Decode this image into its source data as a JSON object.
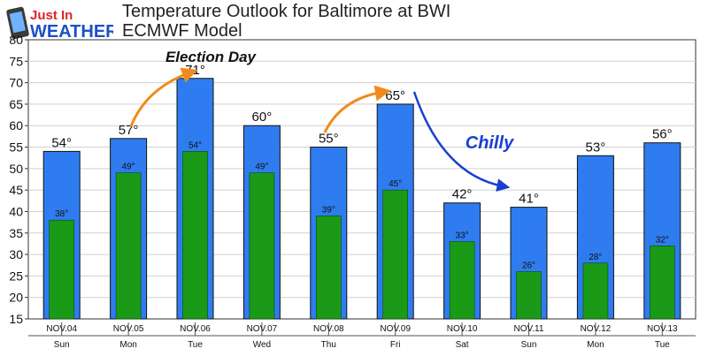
{
  "logo": {
    "line1": "Just In",
    "line2": "WEATHER"
  },
  "header": {
    "title": "Temperature Outlook for Baltimore at BWI",
    "subtitle": "ECMWF Model"
  },
  "chart_data": {
    "type": "bar",
    "categories": [
      "NOV.04",
      "NOV.05",
      "NOV.06",
      "NOV.07",
      "NOV.08",
      "NOV.09",
      "NOV.10",
      "NOV.11",
      "NOV.12",
      "NOV.13"
    ],
    "days": [
      "Sun",
      "Mon",
      "Tue",
      "Wed",
      "Thu",
      "Fri",
      "Sat",
      "Sun",
      "Mon",
      "Tue"
    ],
    "series": [
      {
        "key": "high",
        "values": [
          54,
          57,
          71,
          60,
          55,
          65,
          42,
          41,
          53,
          56
        ],
        "color": "#2f7cf0",
        "label_suffix": "°"
      },
      {
        "key": "low",
        "values": [
          38,
          49,
          54,
          49,
          39,
          45,
          33,
          26,
          28,
          32
        ],
        "color": "#1a9a17",
        "label_suffix": "°"
      }
    ],
    "ylim": [
      15,
      80
    ],
    "yticks": [
      15,
      20,
      25,
      30,
      35,
      40,
      45,
      50,
      55,
      60,
      65,
      70,
      75,
      80
    ],
    "grid": true,
    "annotations": [
      {
        "name": "election-day",
        "text": "Election Day",
        "color": "#111111"
      },
      {
        "name": "chilly",
        "text": "Chilly",
        "color": "#1a3fd0"
      }
    ],
    "arrow_colors": {
      "warm": "#f08a1c",
      "cold": "#1a3fd0"
    }
  }
}
